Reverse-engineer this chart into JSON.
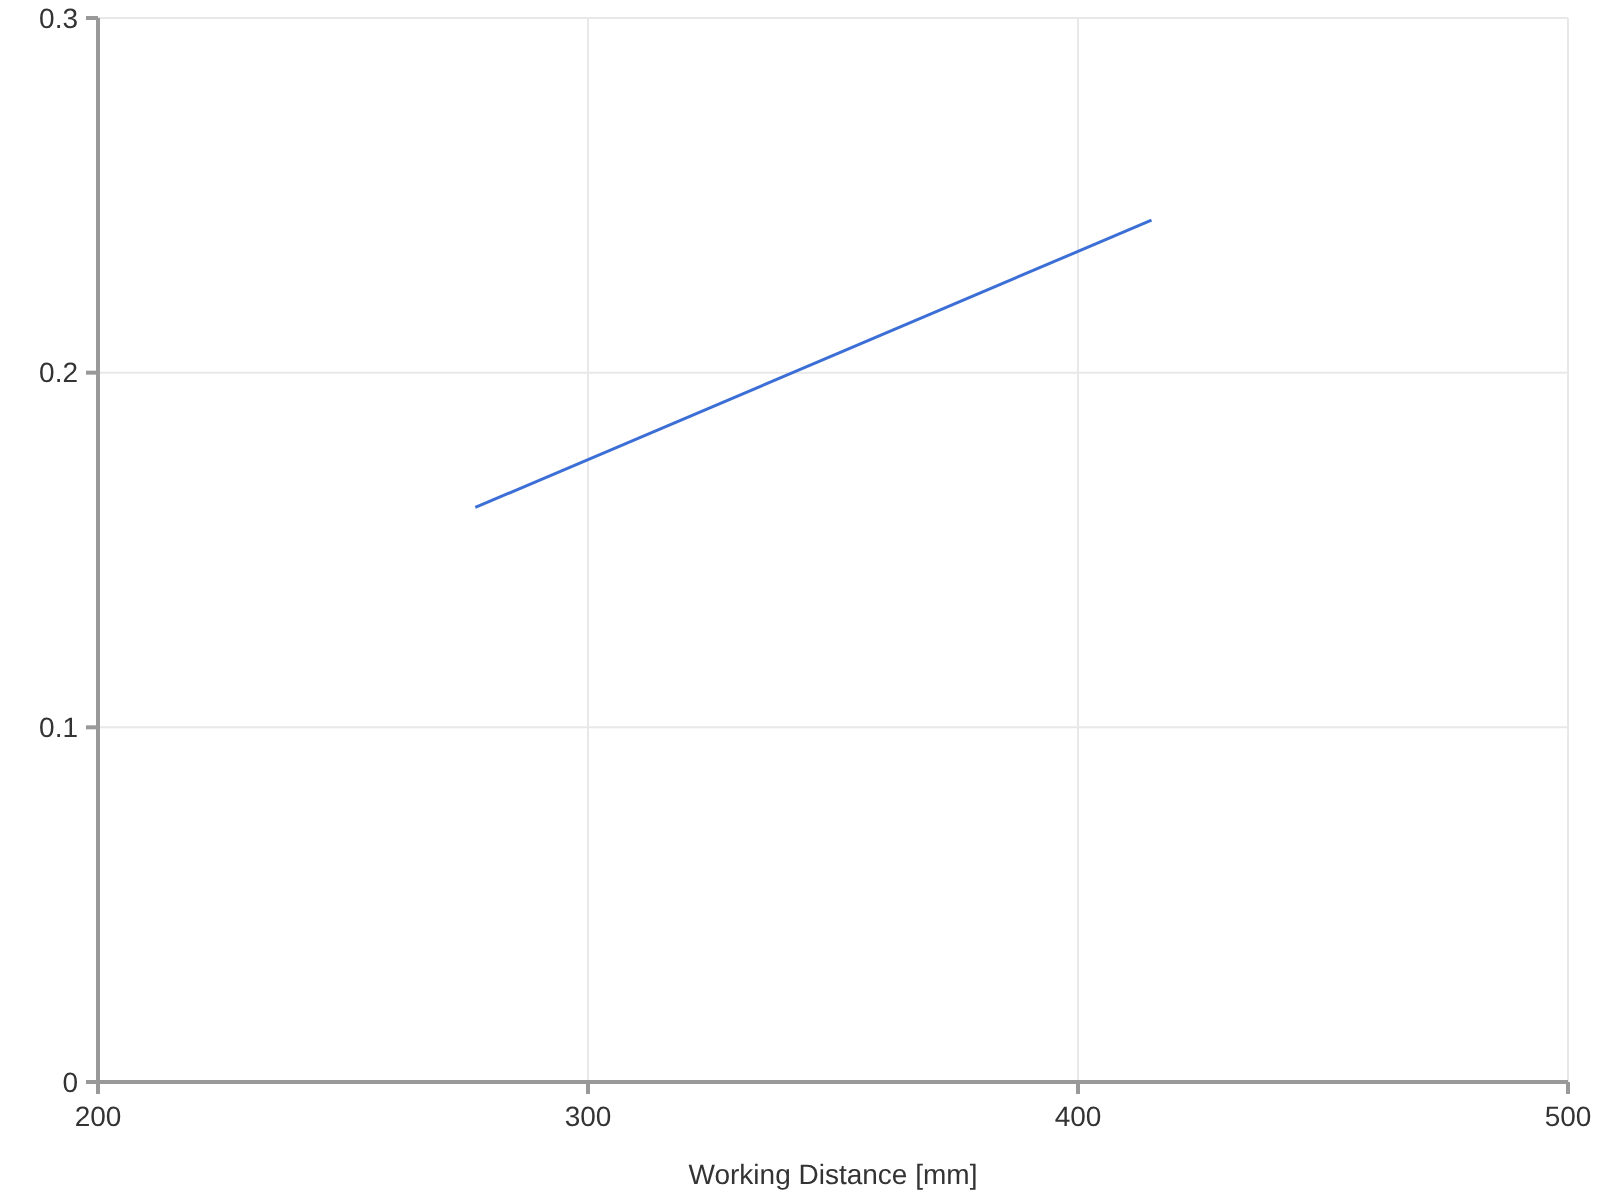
{
  "chart_data": {
    "type": "line",
    "xlabel": "Working Distance [mm]",
    "x": [
      277,
      415
    ],
    "series": [
      {
        "color": "#3c6fd6",
        "values": [
          0.162,
          0.243
        ]
      }
    ],
    "xlim": [
      200,
      500
    ],
    "xticks": [
      200,
      300,
      400,
      500
    ],
    "ylim": [
      0,
      0.3
    ],
    "yticks": [
      0,
      0.1,
      0.2,
      0.3
    ],
    "grid": true
  }
}
